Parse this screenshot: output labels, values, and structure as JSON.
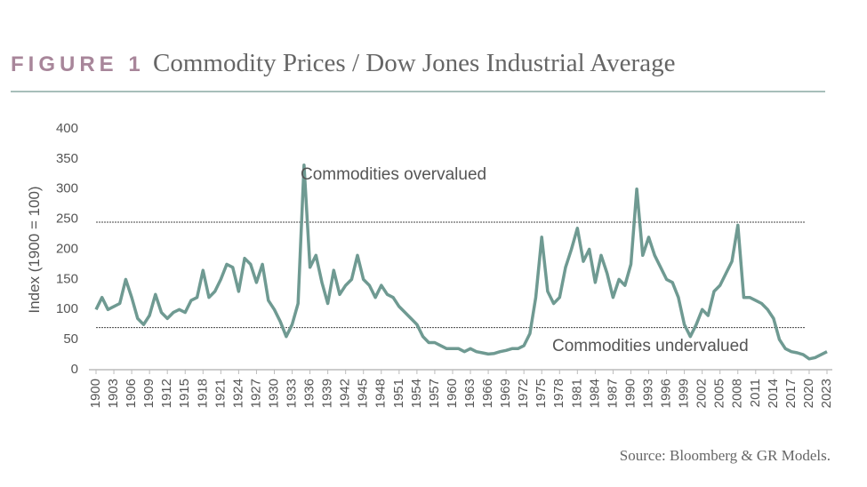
{
  "chart_data": {
    "type": "line",
    "figure_label": "FIGURE 1",
    "title": "Commodity Prices / Dow Jones Industrial Average",
    "ylabel": "Index (1900 = 100)",
    "source": "Source: Bloomberg & GR Models.",
    "color": "#6f9a92",
    "x": [
      1900,
      1901,
      1902,
      1903,
      1904,
      1905,
      1906,
      1907,
      1908,
      1909,
      1910,
      1911,
      1912,
      1913,
      1914,
      1915,
      1916,
      1917,
      1918,
      1919,
      1920,
      1921,
      1922,
      1923,
      1924,
      1925,
      1926,
      1927,
      1928,
      1929,
      1930,
      1931,
      1932,
      1933,
      1934,
      1935,
      1936,
      1937,
      1938,
      1939,
      1940,
      1941,
      1942,
      1943,
      1944,
      1945,
      1946,
      1947,
      1948,
      1949,
      1950,
      1951,
      1952,
      1953,
      1954,
      1955,
      1956,
      1957,
      1958,
      1959,
      1960,
      1961,
      1962,
      1963,
      1964,
      1965,
      1966,
      1967,
      1968,
      1969,
      1970,
      1971,
      1972,
      1973,
      1974,
      1975,
      1976,
      1977,
      1978,
      1979,
      1980,
      1981,
      1982,
      1983,
      1984,
      1985,
      1986,
      1987,
      1988,
      1989,
      1990,
      1991,
      1992,
      1993,
      1994,
      1995,
      1996,
      1997,
      1998,
      1999,
      2000,
      2001,
      2002,
      2003,
      2004,
      2005,
      2006,
      2007,
      2008,
      2009,
      2010,
      2011,
      2012,
      2013,
      2014,
      2015,
      2016,
      2017,
      2018,
      2019,
      2020,
      2021,
      2022,
      2023
    ],
    "values": [
      100,
      120,
      100,
      105,
      110,
      150,
      120,
      85,
      75,
      90,
      125,
      95,
      85,
      95,
      100,
      95,
      115,
      120,
      165,
      120,
      130,
      150,
      175,
      170,
      130,
      185,
      175,
      145,
      175,
      115,
      100,
      80,
      55,
      75,
      110,
      340,
      170,
      190,
      145,
      110,
      165,
      125,
      140,
      150,
      190,
      150,
      140,
      120,
      140,
      125,
      120,
      105,
      95,
      85,
      75,
      55,
      45,
      45,
      40,
      35,
      35,
      35,
      30,
      35,
      30,
      28,
      26,
      27,
      30,
      32,
      35,
      35,
      40,
      60,
      120,
      220,
      130,
      110,
      120,
      170,
      200,
      235,
      180,
      200,
      145,
      190,
      160,
      120,
      150,
      140,
      175,
      300,
      190,
      220,
      190,
      170,
      150,
      145,
      120,
      75,
      55,
      75,
      100,
      90,
      130,
      140,
      160,
      180,
      240,
      120,
      120,
      115,
      110,
      100,
      85,
      50,
      35,
      30,
      28,
      25,
      18,
      20,
      25,
      30
    ],
    "xlim": [
      1900,
      2023
    ],
    "ylim": [
      0,
      400
    ],
    "xticks": [
      1900,
      1903,
      1906,
      1909,
      1912,
      1915,
      1918,
      1921,
      1924,
      1927,
      1930,
      1933,
      1936,
      1939,
      1942,
      1945,
      1948,
      1951,
      1954,
      1957,
      1960,
      1963,
      1966,
      1969,
      1972,
      1975,
      1978,
      1981,
      1984,
      1987,
      1990,
      1993,
      1996,
      1999,
      2002,
      2005,
      2008,
      2011,
      2014,
      2017,
      2020,
      2023
    ],
    "yticks": [
      0,
      50,
      100,
      150,
      200,
      250,
      300,
      350,
      400
    ],
    "reference_lines": [
      245,
      70
    ],
    "annotations": [
      "Commodities overvalued",
      "Commodities undervalued"
    ]
  }
}
